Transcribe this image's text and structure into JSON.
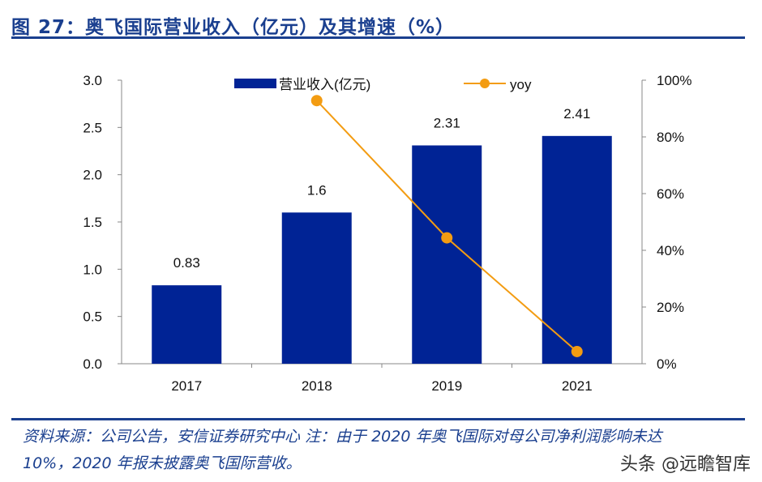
{
  "title": "图 27：奥飞国际营业收入（亿元）及其增速（%）",
  "footer_line1": "资料来源：公司公告，安信证券研究中心 注：由于 2020 年奥飞国际对母公司净利润影响未达",
  "footer_line2": "10%，2020 年报未披露奥飞国际营收。",
  "watermark": "头条 @远瞻智库",
  "chart_data": {
    "type": "bar+line",
    "categories": [
      "2017",
      "2018",
      "2019",
      "2021"
    ],
    "series": [
      {
        "name": "营业收入(亿元)",
        "type": "bar",
        "axis": "left",
        "color": "#002395",
        "values": [
          0.83,
          1.6,
          2.31,
          2.41
        ],
        "labels": [
          "0.83",
          "1.6",
          "2.31",
          "2.41"
        ]
      },
      {
        "name": "yoy",
        "type": "line",
        "axis": "right",
        "color": "#f39c12",
        "values": [
          null,
          92.8,
          44.4,
          4.3
        ]
      }
    ],
    "left_axis": {
      "range": [
        0,
        3
      ],
      "ticks": [
        "0.0",
        "0.5",
        "1.0",
        "1.5",
        "2.0",
        "2.5",
        "3.0"
      ]
    },
    "right_axis": {
      "range": [
        0,
        100
      ],
      "ticks": [
        "0%",
        "20%",
        "40%",
        "60%",
        "80%",
        "100%"
      ]
    },
    "legend": "top",
    "grid": false
  }
}
